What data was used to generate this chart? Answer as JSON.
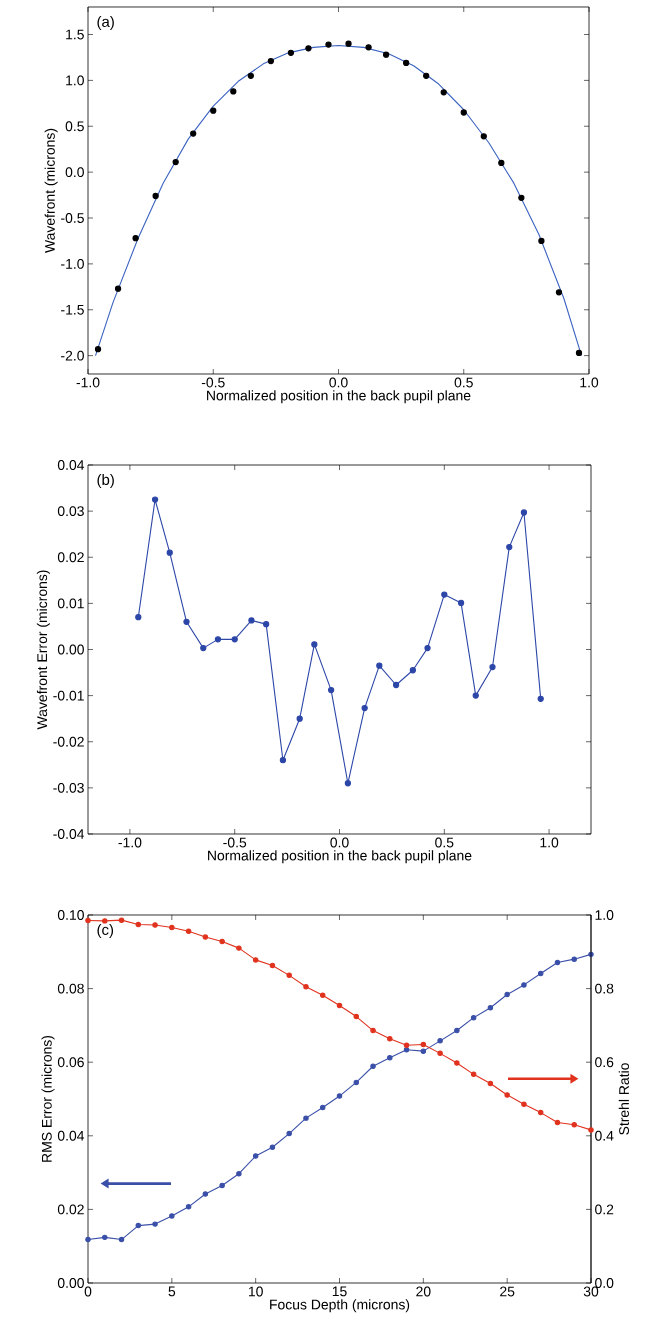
{
  "chart_data": [
    {
      "type": "scatter",
      "xlabel": "Normalized position in the back pupil plane",
      "ylabel": "Wavefront (microns)",
      "annotations": [
        "(a)"
      ],
      "marker": "circle",
      "xlim": [
        -1.0,
        1.0
      ],
      "xticks": [
        {
          "value": -1.0,
          "label": "-1.0"
        },
        {
          "value": -0.5,
          "label": "-0.5"
        },
        {
          "value": 0,
          "label": "0.0"
        },
        {
          "value": 0.5,
          "label": "0.5"
        },
        {
          "value": 1.0,
          "label": "1.0"
        }
      ],
      "ylim": [
        -2.2,
        1.8
      ],
      "yticks": [
        {
          "value": -2.0,
          "label": "-2.0"
        },
        {
          "value": -1.5,
          "label": "-1.5"
        },
        {
          "value": -1.0,
          "label": "-1.0"
        },
        {
          "value": -0.5,
          "label": "-0.5"
        },
        {
          "value": 0,
          "label": "0.0"
        },
        {
          "value": 0.5,
          "label": "0.5"
        },
        {
          "value": 1.0,
          "label": "1.0"
        },
        {
          "value": 1.5,
          "label": "1.5"
        }
      ],
      "series": [
        {
          "type": "line",
          "marker": "none",
          "color": "#3a62c0",
          "x": [
            -0.97,
            -0.9,
            -0.8,
            -0.7,
            -0.6,
            -0.5,
            -0.4,
            -0.3,
            -0.2,
            -0.1,
            0,
            0.1,
            0.2,
            0.3,
            0.4,
            0.5,
            0.6,
            0.7,
            0.8,
            0.9,
            0.97
          ],
          "values": [
            -2.0,
            -1.42,
            -0.72,
            -0.12,
            0.36,
            0.72,
            0.99,
            1.18,
            1.3,
            1.36,
            1.38,
            1.36,
            1.29,
            1.16,
            0.96,
            0.68,
            0.32,
            -0.12,
            -0.68,
            -1.38,
            -2.0
          ]
        },
        {
          "type": "scatter",
          "color": "#000000",
          "x": [
            -0.96,
            -0.88,
            -0.81,
            -0.73,
            -0.65,
            -0.58,
            -0.5,
            -0.42,
            -0.35,
            -0.27,
            -0.19,
            -0.12,
            -0.04,
            0.04,
            0.12,
            0.19,
            0.27,
            0.35,
            0.42,
            0.5,
            0.58,
            0.65,
            0.73,
            0.81,
            0.88,
            0.96
          ],
          "values": [
            -1.93,
            -1.27,
            -0.72,
            -0.26,
            0.11,
            0.42,
            0.67,
            0.88,
            1.05,
            1.21,
            1.3,
            1.35,
            1.39,
            1.4,
            1.36,
            1.28,
            1.19,
            1.05,
            0.87,
            0.65,
            0.39,
            0.1,
            -0.28,
            -0.75,
            -1.31,
            -1.97
          ]
        }
      ]
    },
    {
      "type": "line",
      "xlabel": "Normalized position in the back pupil plane",
      "ylabel": "Wavefront Error (microns)",
      "annotations": [
        "(b)"
      ],
      "marker": "circle",
      "xlim": [
        -1.2,
        1.2
      ],
      "xticks": [
        {
          "value": -1.0,
          "label": "-1.0"
        },
        {
          "value": -0.5,
          "label": "-0.5"
        },
        {
          "value": 0,
          "label": "0.0"
        },
        {
          "value": 0.5,
          "label": "0.5"
        },
        {
          "value": 1.0,
          "label": "1.0"
        }
      ],
      "ylim": [
        -0.04,
        0.04
      ],
      "yticks": [
        {
          "value": -0.04,
          "label": "-0.04"
        },
        {
          "value": -0.03,
          "label": "-0.03"
        },
        {
          "value": -0.02,
          "label": "-0.02"
        },
        {
          "value": -0.01,
          "label": "-0.01"
        },
        {
          "value": 0,
          "label": "0.00"
        },
        {
          "value": 0.01,
          "label": "0.01"
        },
        {
          "value": 0.02,
          "label": "0.02"
        },
        {
          "value": 0.03,
          "label": "0.03"
        },
        {
          "value": 0.04,
          "label": "0.04"
        }
      ],
      "series": [
        {
          "color": "#2c46a8",
          "x": [
            -0.96,
            -0.88,
            -0.81,
            -0.73,
            -0.65,
            -0.58,
            -0.5,
            -0.42,
            -0.35,
            -0.27,
            -0.19,
            -0.12,
            -0.04,
            0.04,
            0.12,
            0.19,
            0.27,
            0.35,
            0.42,
            0.5,
            0.58,
            0.65,
            0.73,
            0.81,
            0.88,
            0.96
          ],
          "values": [
            0.007,
            0.0325,
            0.021,
            0.006,
            0.0003,
            0.0022,
            0.0022,
            0.0063,
            0.0055,
            -0.024,
            -0.015,
            0.0011,
            -0.0088,
            -0.029,
            -0.0127,
            -0.0035,
            -0.0077,
            -0.0045,
            0.0003,
            0.0119,
            0.0101,
            -0.01,
            -0.0038,
            0.0222,
            0.0297,
            -0.0107
          ]
        }
      ]
    },
    {
      "type": "line",
      "xlabel": "Focus Depth (microns)",
      "ylabel": "RMS Error (microns)",
      "y2label": "Strehl Ratio",
      "annotations": [
        "(c)"
      ],
      "marker": "circle",
      "xlim": [
        0,
        30
      ],
      "xticks": [
        0,
        5,
        10,
        15,
        20,
        25,
        30
      ],
      "ylim": [
        0,
        0.1
      ],
      "yticks": [
        {
          "value": 0,
          "label": "0.00"
        },
        {
          "value": 0.02,
          "label": "0.02"
        },
        {
          "value": 0.04,
          "label": "0.04"
        },
        {
          "value": 0.06,
          "label": "0.06"
        },
        {
          "value": 0.08,
          "label": "0.08"
        },
        {
          "value": 0.1,
          "label": "0.10"
        }
      ],
      "y2lim": [
        0,
        1.0
      ],
      "y2ticks": [
        {
          "value": 0,
          "label": "0.0"
        },
        {
          "value": 0.2,
          "label": "0.2"
        },
        {
          "value": 0.4,
          "label": "0.4"
        },
        {
          "value": 0.6,
          "label": "0.6"
        },
        {
          "value": 0.8,
          "label": "0.8"
        },
        {
          "value": 1.0,
          "label": "1.0"
        }
      ],
      "x": [
        0,
        1,
        2,
        3,
        4,
        5,
        6,
        7,
        8,
        9,
        10,
        11,
        12,
        13,
        14,
        15,
        16,
        17,
        18,
        19,
        20,
        21,
        22,
        23,
        24,
        25,
        26,
        27,
        28,
        29,
        30
      ],
      "series": [
        {
          "color": "#3a4fa8",
          "values": [
            0.0118,
            0.0124,
            0.0118,
            0.0156,
            0.016,
            0.0182,
            0.0207,
            0.0242,
            0.0265,
            0.0297,
            0.0345,
            0.0369,
            0.0406,
            0.0448,
            0.0477,
            0.0508,
            0.0545,
            0.0589,
            0.0612,
            0.0634,
            0.063,
            0.0658,
            0.0686,
            0.0721,
            0.0748,
            0.0784,
            0.081,
            0.0841,
            0.0871,
            0.088,
            0.0893
          ]
        },
        {
          "color": "#e0321e",
          "axis": "y2",
          "values": [
            0.985,
            0.984,
            0.986,
            0.974,
            0.973,
            0.966,
            0.956,
            0.94,
            0.928,
            0.91,
            0.878,
            0.863,
            0.836,
            0.805,
            0.782,
            0.754,
            0.724,
            0.686,
            0.664,
            0.646,
            0.648,
            0.624,
            0.598,
            0.567,
            0.542,
            0.511,
            0.486,
            0.463,
            0.436,
            0.43,
            0.416
          ]
        }
      ]
    }
  ]
}
